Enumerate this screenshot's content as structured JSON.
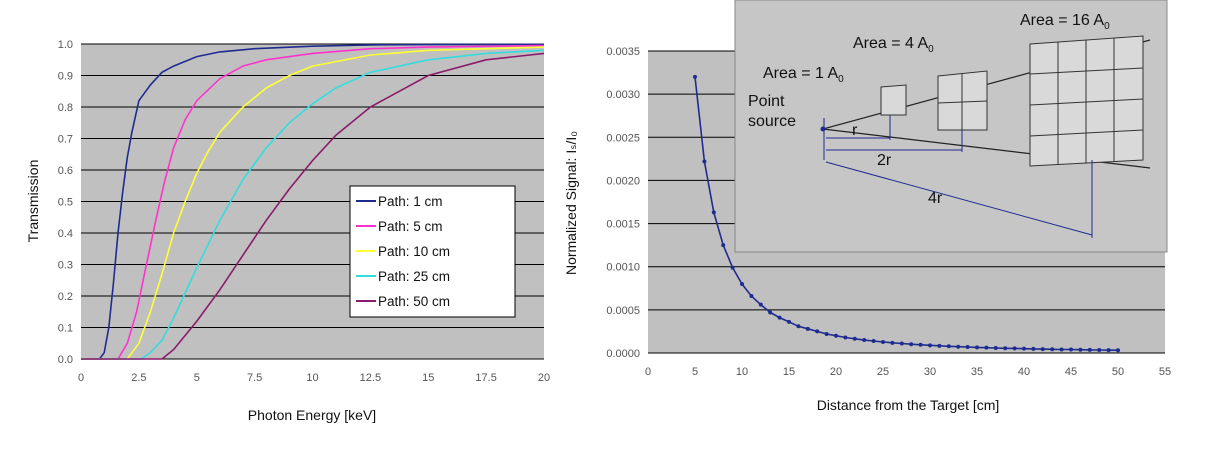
{
  "chart_data": [
    {
      "type": "line",
      "title": "",
      "xlabel": "Photon Energy [keV]",
      "ylabel": "Transmission",
      "xlim": [
        0,
        20
      ],
      "ylim": [
        0,
        1.0
      ],
      "x_ticks": [
        "0",
        "2.5",
        "5",
        "7.5",
        "10",
        "12.5",
        "15",
        "17.5",
        "20"
      ],
      "y_ticks": [
        "0.0",
        "0.1",
        "0.2",
        "0.3",
        "0.4",
        "0.5",
        "0.6",
        "0.7",
        "0.8",
        "0.9",
        "1.0"
      ],
      "grid": true,
      "legend_position": "right",
      "series": [
        {
          "name": "Path:  1 cm",
          "color": "#1f2c8f",
          "x": [
            0,
            0.8,
            1.0,
            1.2,
            1.4,
            1.6,
            1.8,
            2.0,
            2.2,
            2.5,
            3.0,
            3.5,
            4.0,
            5.0,
            6.0,
            7.5,
            10,
            12.5,
            15,
            20
          ],
          "y": [
            0,
            0,
            0.02,
            0.1,
            0.24,
            0.4,
            0.53,
            0.64,
            0.72,
            0.82,
            0.87,
            0.91,
            0.93,
            0.96,
            0.975,
            0.985,
            0.993,
            0.997,
            0.998,
            0.999
          ]
        },
        {
          "name": "Path:  5 cm",
          "color": "#ff33cc",
          "x": [
            0,
            1.6,
            2.0,
            2.4,
            2.8,
            3.2,
            3.6,
            4.0,
            4.5,
            5.0,
            6.0,
            7.0,
            8.0,
            10,
            12.5,
            15,
            20
          ],
          "y": [
            0,
            0,
            0.05,
            0.15,
            0.29,
            0.43,
            0.56,
            0.67,
            0.76,
            0.82,
            0.89,
            0.93,
            0.95,
            0.97,
            0.985,
            0.99,
            0.995
          ]
        },
        {
          "name": "Path: 10 cm",
          "color": "#ffff33",
          "x": [
            0,
            2.0,
            2.5,
            3.0,
            3.5,
            4.0,
            4.5,
            5.0,
            5.5,
            6.0,
            7.0,
            8.0,
            9.0,
            10,
            12.5,
            15,
            20
          ],
          "y": [
            0,
            0,
            0.05,
            0.15,
            0.27,
            0.4,
            0.5,
            0.59,
            0.66,
            0.72,
            0.8,
            0.86,
            0.9,
            0.93,
            0.965,
            0.98,
            0.99
          ]
        },
        {
          "name": "Path: 25 cm",
          "color": "#33dddd",
          "x": [
            0,
            2.6,
            3.0,
            3.5,
            4.0,
            4.5,
            5.0,
            6.0,
            7.0,
            8.0,
            9.0,
            10,
            11,
            12.5,
            15,
            17.5,
            20
          ],
          "y": [
            0,
            0,
            0.02,
            0.06,
            0.13,
            0.21,
            0.29,
            0.44,
            0.57,
            0.67,
            0.75,
            0.81,
            0.86,
            0.91,
            0.95,
            0.97,
            0.98
          ]
        },
        {
          "name": "Path: 50 cm",
          "color": "#8b1a6b",
          "x": [
            0,
            3.5,
            4.0,
            5.0,
            6.0,
            7.0,
            8.0,
            9.0,
            10,
            11,
            12.5,
            15,
            17.5,
            20
          ],
          "y": [
            0,
            0,
            0.03,
            0.12,
            0.22,
            0.33,
            0.44,
            0.54,
            0.63,
            0.71,
            0.8,
            0.9,
            0.95,
            0.97
          ]
        }
      ]
    },
    {
      "type": "line",
      "title": "",
      "xlabel": "Distance from the Target [cm]",
      "ylabel": "Normalized Signal: Iₛ/I₀",
      "xlim": [
        0,
        55
      ],
      "ylim": [
        0,
        0.0035
      ],
      "x_ticks": [
        "0",
        "5",
        "10",
        "15",
        "20",
        "25",
        "30",
        "35",
        "40",
        "45",
        "50",
        "55"
      ],
      "y_ticks": [
        "0.0000",
        "0.0005",
        "0.0010",
        "0.0015",
        "0.0020",
        "0.0025",
        "0.0030",
        "0.0035"
      ],
      "grid": true,
      "series": [
        {
          "name": "",
          "color": "#1f2c8f",
          "markers": true,
          "x": [
            5,
            6,
            7,
            8,
            9,
            10,
            11,
            12,
            13,
            14,
            15,
            16,
            17,
            18,
            19,
            20,
            21,
            22,
            23,
            24,
            25,
            26,
            27,
            28,
            29,
            30,
            31,
            32,
            33,
            34,
            35,
            36,
            37,
            38,
            39,
            40,
            41,
            42,
            43,
            44,
            45,
            46,
            47,
            48,
            49,
            50
          ],
          "y": [
            0.0032,
            0.00222,
            0.00163,
            0.00125,
            0.00099,
            0.0008,
            0.00066,
            0.00056,
            0.00047,
            0.00041,
            0.00036,
            0.00031,
            0.00028,
            0.00025,
            0.00022,
            0.0002,
            0.00018,
            0.000165,
            0.00015,
            0.000139,
            0.000128,
            0.000118,
            0.00011,
            0.000102,
            9.5e-05,
            8.9e-05,
            8.3e-05,
            7.8e-05,
            7.3e-05,
            6.9e-05,
            6.5e-05,
            6.2e-05,
            5.8e-05,
            5.5e-05,
            5.3e-05,
            5e-05,
            4.8e-05,
            4.5e-05,
            4.3e-05,
            4.1e-05,
            4e-05,
            3.8e-05,
            3.6e-05,
            3.5e-05,
            3.3e-05,
            3.2e-05
          ]
        }
      ]
    }
  ],
  "inset_diagram": {
    "labels": {
      "area1": "Area = 1 A",
      "area4": "Area = 4 A",
      "area16": "Area = 16 A",
      "subscript": "0",
      "point": "Point",
      "source": "source",
      "r1": "r",
      "r2": "2r",
      "r4": "4r"
    }
  }
}
